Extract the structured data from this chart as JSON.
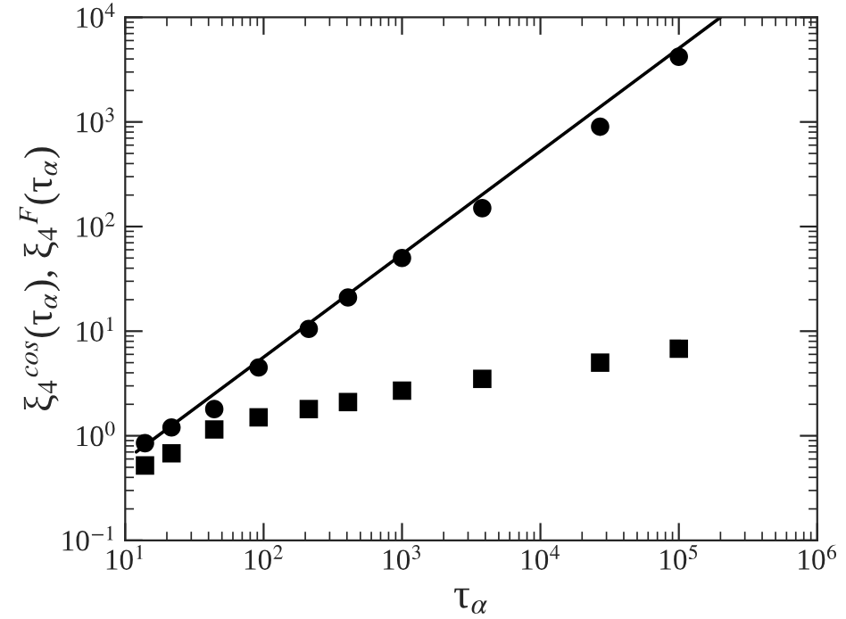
{
  "chart_data": {
    "type": "scatter",
    "xlabel": "τ$_{α}$",
    "ylabel": "ξ$_{4}$$^{cos}$(τ$_{α}$), ξ$_{4}$$^{F}$(τ$_{α}$)",
    "log": "xy",
    "grid": false,
    "series": [
      {
        "marker": "circle",
        "color": "#000000",
        "x": [
          13.9,
          21.6,
          44,
          92,
          212,
          407,
          1000,
          3800,
          27000,
          100000
        ],
        "values": [
          0.85,
          1.2,
          1.8,
          4.5,
          10.5,
          21,
          50,
          150,
          900,
          4200
        ]
      },
      {
        "marker": "square",
        "color": "#000000",
        "x": [
          13.9,
          21.6,
          44,
          92,
          212,
          407,
          1000,
          3800,
          27000,
          100000
        ],
        "values": [
          0.52,
          0.68,
          1.15,
          1.5,
          1.8,
          2.1,
          2.7,
          3.5,
          5.0,
          6.8
        ]
      },
      {
        "type": "line",
        "marker": "none",
        "line_style": "solid",
        "color": "#000000",
        "x": [
          12,
          200000
        ],
        "values": [
          0.7,
          10000
        ]
      }
    ],
    "xlim": [
      10,
      1000000
    ],
    "ylim": [
      0.1,
      10000
    ],
    "xticks": [
      {
        "value": 10,
        "label": "10$^{1}$"
      },
      {
        "value": 100,
        "label": "10$^{2}$"
      },
      {
        "value": 1000,
        "label": "10$^{3}$"
      },
      {
        "value": 10000,
        "label": "10$^{4}$"
      },
      {
        "value": 100000,
        "label": "10$^{5}$"
      },
      {
        "value": 1000000,
        "label": "10$^{6}$"
      }
    ],
    "yticks": [
      {
        "value": 0.1,
        "label": "10$^{−1}$"
      },
      {
        "value": 1,
        "label": "10$^{0}$"
      },
      {
        "value": 10,
        "label": "10$^{1}$"
      },
      {
        "value": 100,
        "label": "10$^{2}$"
      },
      {
        "value": 1000,
        "label": "10$^{3}$"
      },
      {
        "value": 10000,
        "label": "10$^{4}$"
      }
    ]
  }
}
